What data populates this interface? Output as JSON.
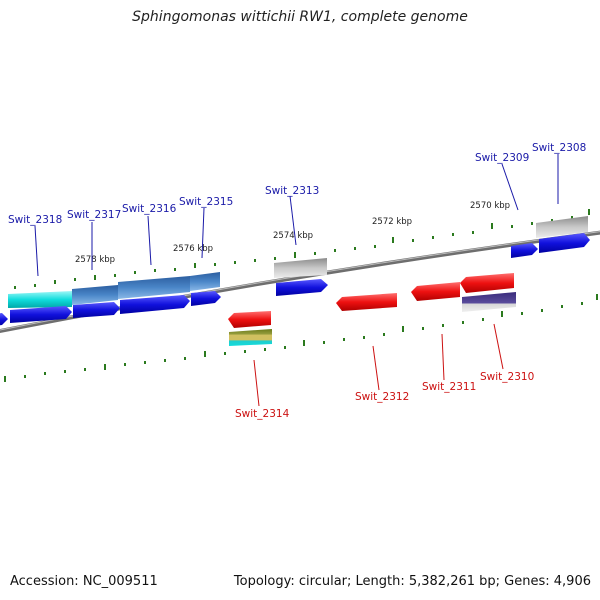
{
  "title": "Sphingomonas wittichii RW1, complete genome",
  "accession": "Accession: NC_009511",
  "genome_info": "Topology: circular; Length: 5,382,261 bp; Genes: 4,906",
  "scale_labels": [
    "2578 kbp",
    "2576 kbp",
    "2574 kbp",
    "2572 kbp",
    "2570 kbp"
  ],
  "genes_top": [
    "Swit_2318",
    "Swit_2317",
    "Swit_2316",
    "Swit_2315",
    "Swit_2313",
    "Swit_2309",
    "Swit_2308"
  ],
  "genes_bottom": [
    "Swit_2314",
    "Swit_2312",
    "Swit_2311",
    "Swit_2310"
  ],
  "colors": {
    "forward_gene": "#1111dd",
    "reverse_gene": "#ee1111",
    "backbone": "#808080",
    "tick": "#2b7a1e",
    "label_forward": "#1a1aa8",
    "label_reverse": "#cc1111",
    "cyan_feature": "#11dddd",
    "steelblue_feature": "#3a74b8",
    "gray_feature": "#b5b5b5",
    "purple_feature": "#4a3c8c",
    "olive_feature": "#7a8a2a"
  }
}
